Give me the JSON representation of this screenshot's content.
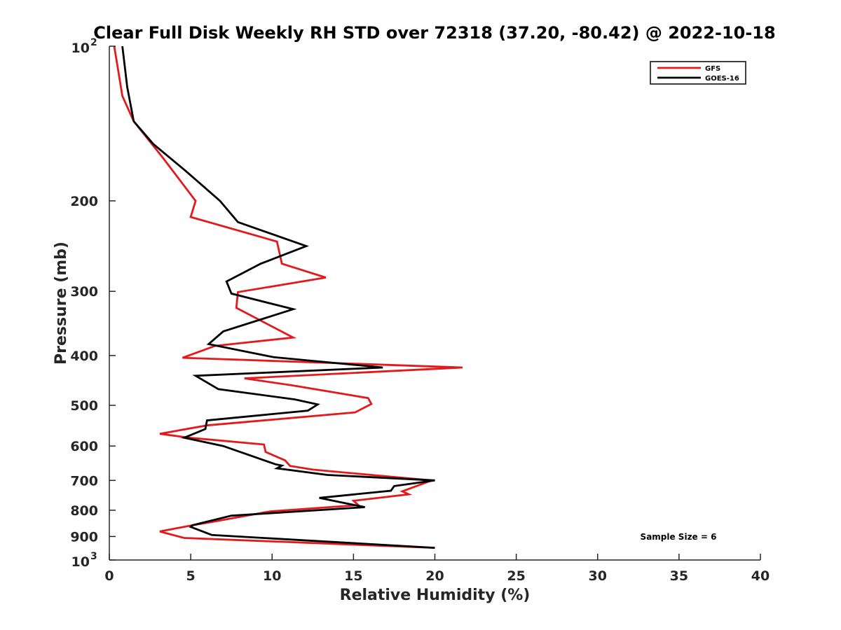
{
  "chart_data": {
    "type": "line",
    "title": "Clear Full Disk Weekly RH STD over 72318 (37.20, -80.42) @ 2022-10-18",
    "xlabel": "Relative Humidity (%)",
    "ylabel": "Pressure (mb)",
    "xlim": [
      0,
      40
    ],
    "ylim": [
      100,
      1000
    ],
    "y_scale": "log",
    "y_reversed": true,
    "x_ticks": [
      "0",
      "5",
      "10",
      "15",
      "20",
      "25",
      "30",
      "35",
      "40"
    ],
    "y_ticks": [
      {
        "value": 100,
        "base": "10",
        "exp": "2"
      },
      {
        "value": 200,
        "label": "200"
      },
      {
        "value": 300,
        "label": "300"
      },
      {
        "value": 400,
        "label": "400"
      },
      {
        "value": 500,
        "label": "500"
      },
      {
        "value": 600,
        "label": "600"
      },
      {
        "value": 700,
        "label": "700"
      },
      {
        "value": 800,
        "label": "800"
      },
      {
        "value": 900,
        "label": "900"
      },
      {
        "value": 1000,
        "base": "10",
        "exp": "3"
      }
    ],
    "legend_position": "top-right",
    "annotation": "Sample Size = 6",
    "series": [
      {
        "name": "GFS",
        "color": "#e31a1c",
        "points": [
          [
            0.3,
            100
          ],
          [
            0.8,
            125
          ],
          [
            1.5,
            140
          ],
          [
            3.3,
            165
          ],
          [
            5.3,
            200
          ],
          [
            5.0,
            215
          ],
          [
            10.3,
            240
          ],
          [
            10.6,
            265
          ],
          [
            13.3,
            282
          ],
          [
            7.9,
            301
          ],
          [
            7.8,
            323
          ],
          [
            11.3,
            369
          ],
          [
            6.5,
            383
          ],
          [
            4.5,
            404
          ],
          [
            21.7,
            422
          ],
          [
            8.3,
            443
          ],
          [
            11.2,
            457
          ],
          [
            15.9,
            484
          ],
          [
            16.1,
            497
          ],
          [
            15.1,
            516
          ],
          [
            6.0,
            547
          ],
          [
            3.1,
            568
          ],
          [
            4.9,
            578
          ],
          [
            9.5,
            596
          ],
          [
            9.6,
            616
          ],
          [
            10.8,
            640
          ],
          [
            11.1,
            656
          ],
          [
            12.5,
            667
          ],
          [
            19.8,
            700
          ],
          [
            18.0,
            735
          ],
          [
            18.4,
            745
          ],
          [
            15.0,
            767
          ],
          [
            15.3,
            782
          ],
          [
            9.9,
            804
          ],
          [
            6.7,
            839
          ],
          [
            4.9,
            858
          ],
          [
            3.1,
            880
          ],
          [
            4.6,
            906
          ],
          [
            20.0,
            947
          ]
        ]
      },
      {
        "name": "GOES-16",
        "color": "#000000",
        "points": [
          [
            0.8,
            100
          ],
          [
            1.1,
            120
          ],
          [
            1.5,
            140
          ],
          [
            2.7,
            155
          ],
          [
            4.7,
            175
          ],
          [
            6.8,
            200
          ],
          [
            7.9,
            220
          ],
          [
            12.1,
            245
          ],
          [
            9.3,
            265
          ],
          [
            7.2,
            287
          ],
          [
            7.5,
            303
          ],
          [
            11.3,
            325
          ],
          [
            7.0,
            359
          ],
          [
            6.1,
            380
          ],
          [
            10.1,
            403
          ],
          [
            16.8,
            422
          ],
          [
            5.3,
            438
          ],
          [
            6.7,
            465
          ],
          [
            11.4,
            487
          ],
          [
            12.8,
            498
          ],
          [
            12.2,
            512
          ],
          [
            6.0,
            535
          ],
          [
            5.9,
            556
          ],
          [
            4.6,
            578
          ],
          [
            7.0,
            600
          ],
          [
            8.6,
            625
          ],
          [
            10.2,
            651
          ],
          [
            10.6,
            655
          ],
          [
            10.3,
            663
          ],
          [
            13.4,
            683
          ],
          [
            20.0,
            700
          ],
          [
            17.5,
            718
          ],
          [
            17.3,
            733
          ],
          [
            12.9,
            757
          ],
          [
            15.7,
            789
          ],
          [
            7.5,
            820
          ],
          [
            5.1,
            856
          ],
          [
            5.0,
            862
          ],
          [
            6.3,
            894
          ],
          [
            20.0,
            947
          ]
        ]
      }
    ]
  }
}
